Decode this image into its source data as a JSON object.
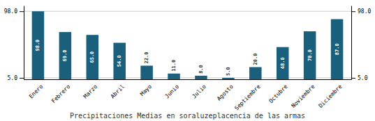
{
  "chart_data": {
    "type": "bar",
    "title": "Precipitaciones Medias en soraluzeplacencia de las armas",
    "categories": [
      "Enero",
      "Febrero",
      "Marzo",
      "Abril",
      "Mayo",
      "Junio",
      "Julio",
      "Agosto",
      "Septiembre",
      "Octubre",
      "Noviembre",
      "Diciembre"
    ],
    "values": [
      98.0,
      69.0,
      65.0,
      54.0,
      22.0,
      11.0,
      8.0,
      5.0,
      20.0,
      48.0,
      70.0,
      87.0
    ],
    "value_labels": [
      "98.0",
      "69.0",
      "65.0",
      "54.0",
      "22.0",
      "11.0",
      "8.0",
      "5.0",
      "20.0",
      "48.0",
      "70.0",
      "87.0"
    ],
    "color": "#1a607c",
    "ylim": [
      3,
      106
    ],
    "yticks": [
      {
        "value": 5,
        "label": "5.0"
      },
      {
        "value": 98,
        "label": "98.0"
      }
    ],
    "y2lim": [
      3,
      106
    ],
    "y2ticks": [
      {
        "value": 5,
        "label": "5.0"
      },
      {
        "value": 98,
        "label": "98.0"
      }
    ],
    "grid": true,
    "data_labels": true
  }
}
